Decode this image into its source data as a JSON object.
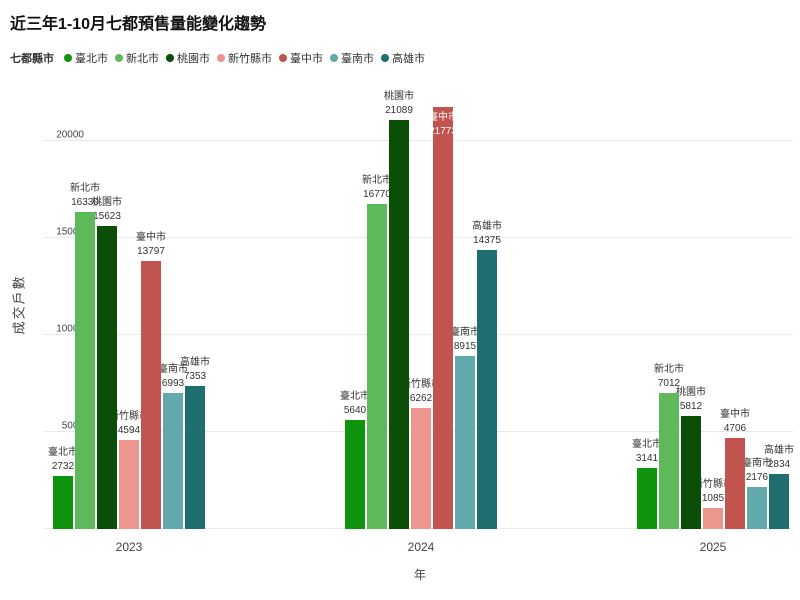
{
  "title": "近三年1-10月七都預售量能變化趨勢",
  "legend": {
    "label": "七都縣市",
    "items": [
      {
        "label": "臺北市",
        "color": "#10940e"
      },
      {
        "label": "新北市",
        "color": "#5eb95a"
      },
      {
        "label": "桃園市",
        "color": "#0a4e08"
      },
      {
        "label": "新竹縣市",
        "color": "#ec968e"
      },
      {
        "label": "臺中市",
        "color": "#c1544e"
      },
      {
        "label": "臺南市",
        "color": "#61a9ab"
      },
      {
        "label": "高雄市",
        "color": "#1f6e70"
      }
    ]
  },
  "chart_data": {
    "type": "bar",
    "title": "近三年1-10月七都預售量能變化趨勢",
    "categories": [
      "2023",
      "2024",
      "2025"
    ],
    "series": [
      {
        "name": "臺北市",
        "color": "#10940e",
        "values": [
          2732,
          5640,
          3141
        ]
      },
      {
        "name": "新北市",
        "color": "#5eb95a",
        "values": [
          16330,
          16770,
          7012
        ]
      },
      {
        "name": "桃園市",
        "color": "#0a4e08",
        "values": [
          15623,
          21089,
          5812
        ]
      },
      {
        "name": "新竹縣市",
        "color": "#ec968e",
        "values": [
          4594,
          6262,
          1085
        ]
      },
      {
        "name": "臺中市",
        "color": "#c1544e",
        "values": [
          13797,
          21773,
          4706
        ]
      },
      {
        "name": "臺南市",
        "color": "#61a9ab",
        "values": [
          6993,
          8915,
          2176
        ]
      },
      {
        "name": "高雄市",
        "color": "#1f6e70",
        "values": [
          7353,
          14375,
          2834
        ]
      }
    ],
    "xlabel": "年",
    "ylabel": "成交戶數",
    "ylim": [
      0,
      20000
    ],
    "yticks": [
      0,
      5000,
      10000,
      15000,
      20000
    ],
    "grid": true,
    "legend_position": "top",
    "bar_labels": "name_and_value"
  }
}
